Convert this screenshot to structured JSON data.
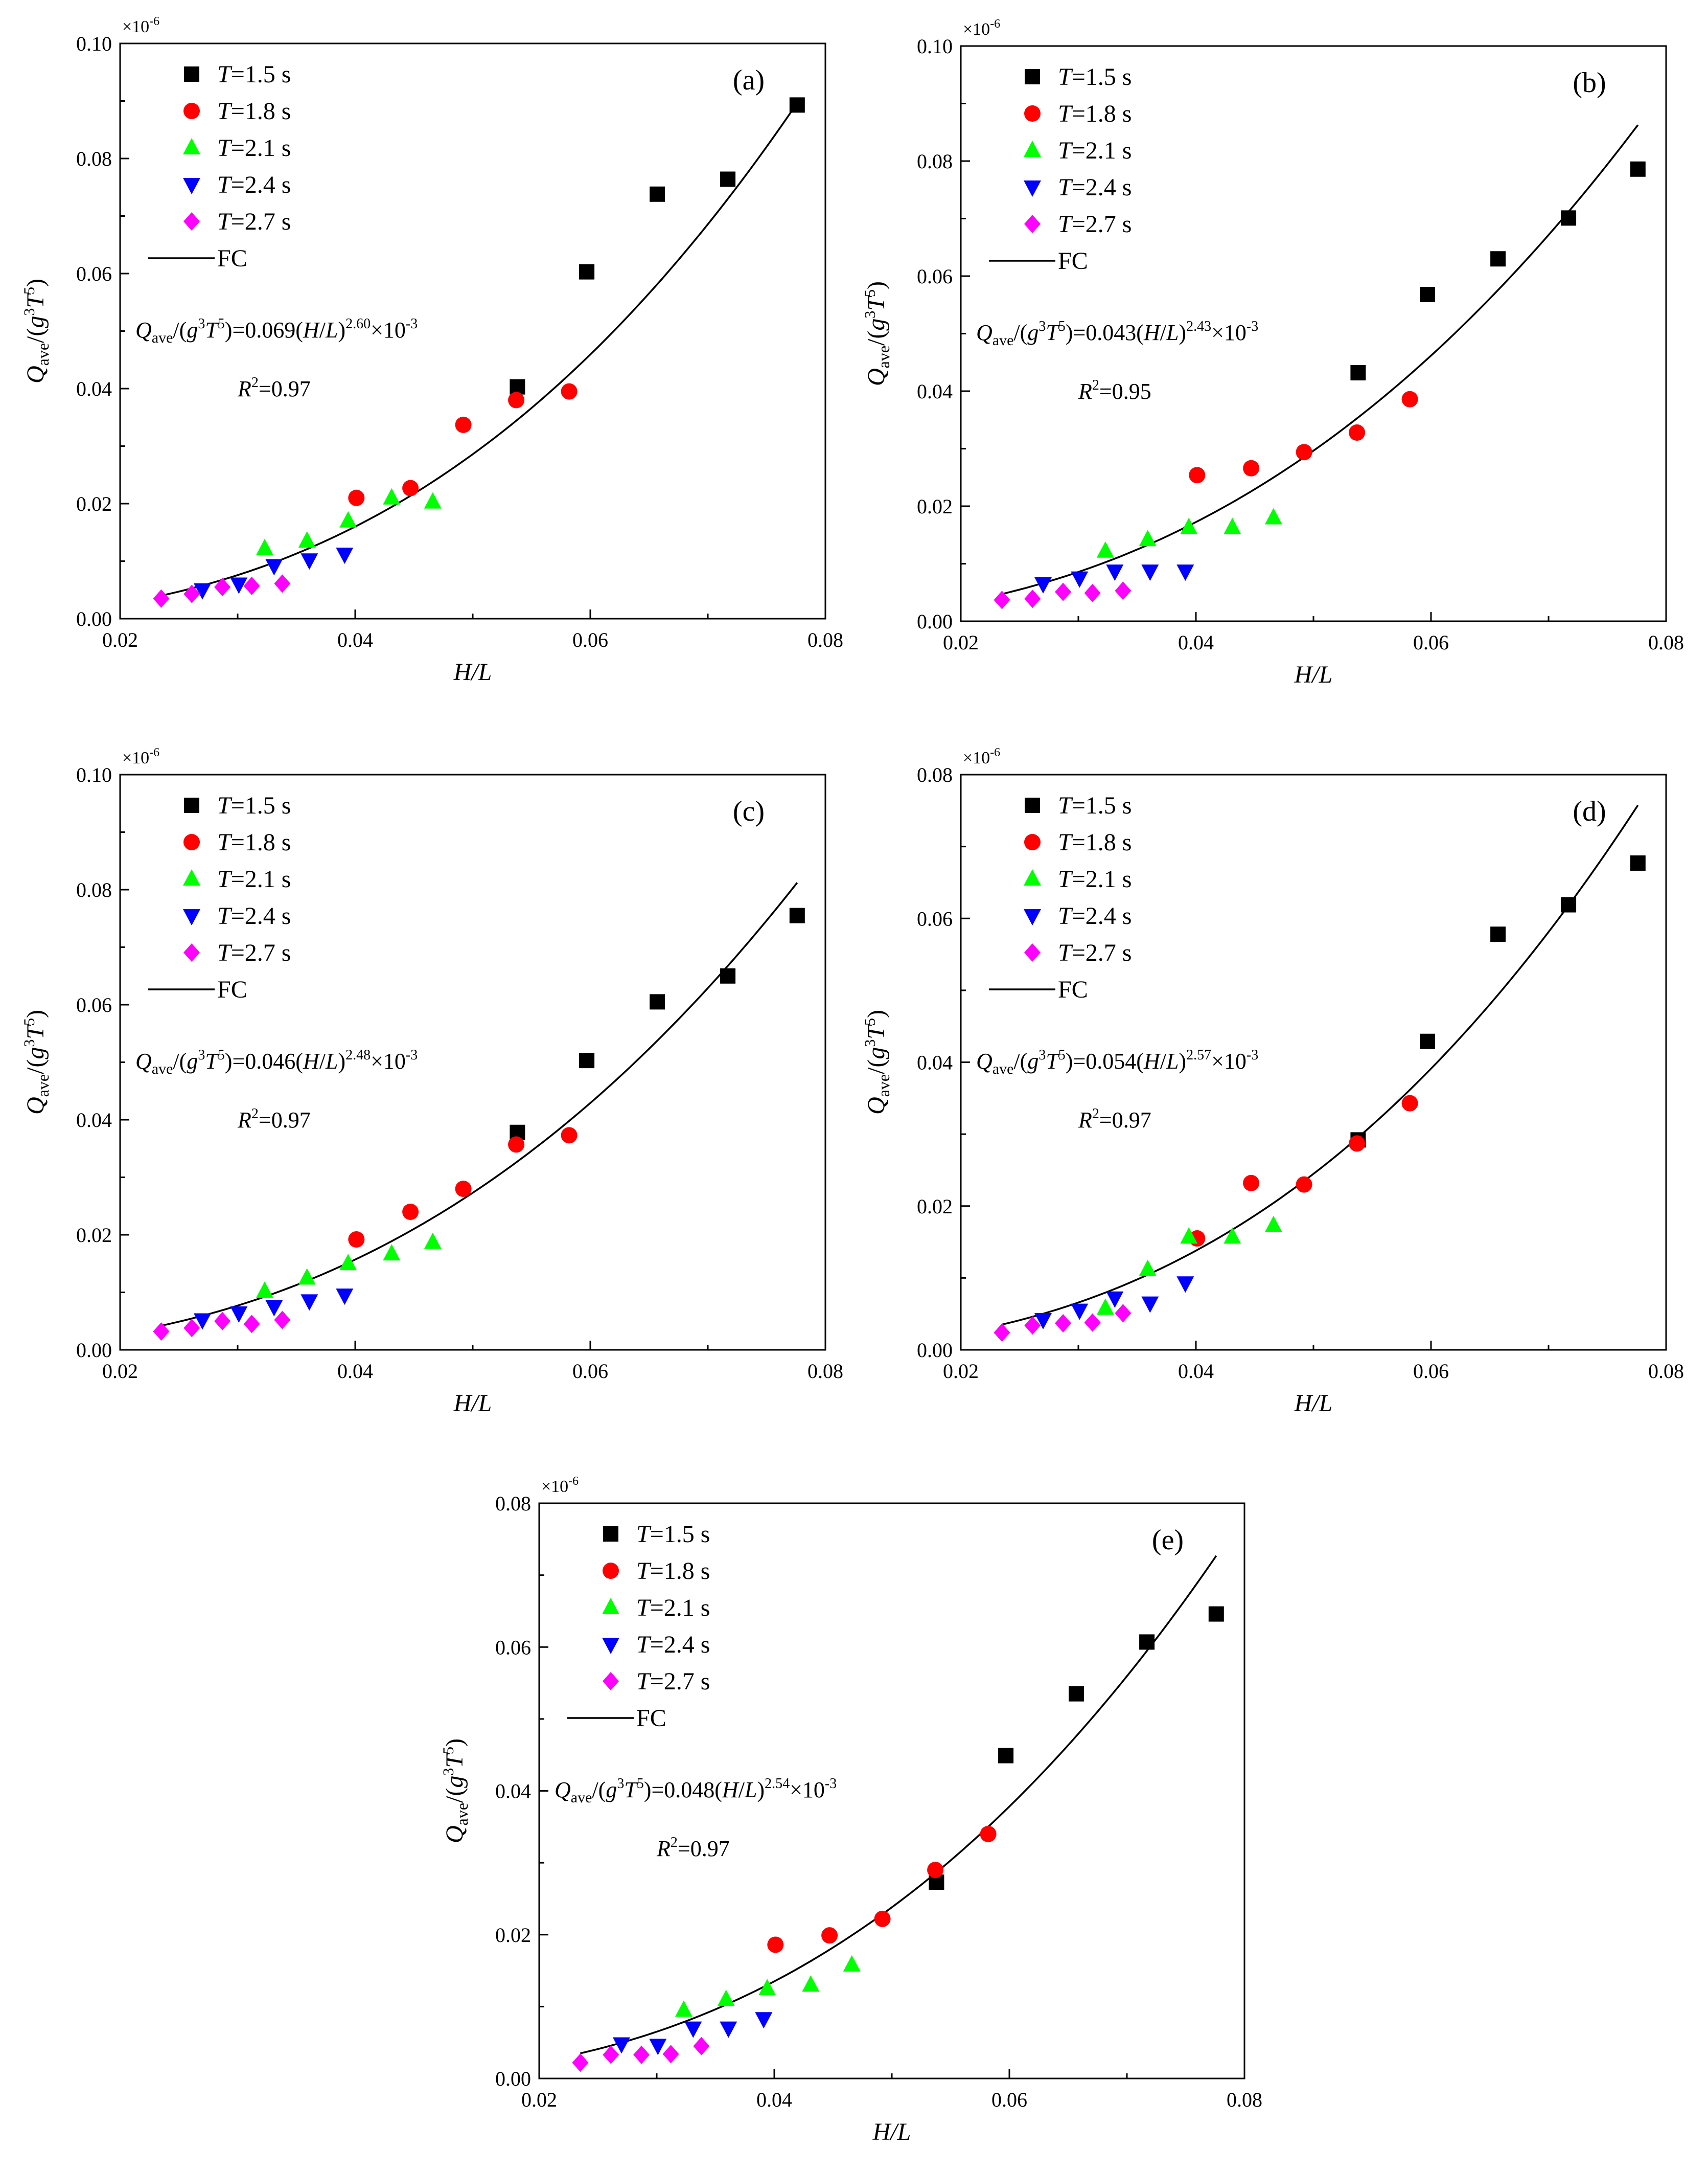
{
  "chart_data": [
    {
      "type": "scatter",
      "panel_label": "(a)",
      "xlabel": "H/L",
      "ylabel": "Qave/(g3T5)",
      "scale_label": "×10",
      "scale_exp": "-6",
      "xlim": [
        0.02,
        0.08
      ],
      "ylim": [
        0.0,
        0.1
      ],
      "xticks": [
        "0.02",
        "0.04",
        "0.06",
        "0.08"
      ],
      "yticks": [
        "0.00",
        "0.02",
        "0.04",
        "0.06",
        "0.08",
        "0.10"
      ],
      "fit": {
        "name": "FC",
        "coef": 0.069,
        "exp": 2.6
      },
      "eq": {
        "coef": "0.069",
        "exp": "2.60"
      },
      "r2": "0.97",
      "series": [
        {
          "name": "T=1.5 s",
          "t": "1.5",
          "marker": "square",
          "color": "#000000",
          "x": [
            0.0538,
            0.0597,
            0.0657,
            0.0717,
            0.0776
          ],
          "y": [
            0.0403,
            0.0603,
            0.0738,
            0.0764,
            0.0893
          ]
        },
        {
          "name": "T=1.8 s",
          "t": "1.8",
          "marker": "circle",
          "color": "#ff0000",
          "x": [
            0.0401,
            0.0447,
            0.0492,
            0.0537,
            0.0582
          ],
          "y": [
            0.021,
            0.0227,
            0.0337,
            0.038,
            0.0395
          ]
        },
        {
          "name": "T=2.1 s",
          "t": "2.1",
          "marker": "triangle-up",
          "color": "#00ff00",
          "x": [
            0.0323,
            0.0359,
            0.0394,
            0.0431,
            0.0466
          ],
          "y": [
            0.0122,
            0.0135,
            0.017,
            0.021,
            0.0203
          ]
        },
        {
          "name": "T=2.4 s",
          "t": "2.4",
          "marker": "triangle-down",
          "color": "#0000ff",
          "x": [
            0.027,
            0.0301,
            0.0331,
            0.0361,
            0.0391
          ],
          "y": [
            0.005,
            0.006,
            0.0092,
            0.0102,
            0.0112
          ]
        },
        {
          "name": "T=2.7 s",
          "t": "2.7",
          "marker": "diamond",
          "color": "#ff00ff",
          "x": [
            0.0235,
            0.0261,
            0.0287,
            0.0312,
            0.0338
          ],
          "y": [
            0.0035,
            0.0043,
            0.0055,
            0.0057,
            0.0061
          ]
        }
      ]
    },
    {
      "type": "scatter",
      "panel_label": "(b)",
      "xlabel": "H/L",
      "ylabel": "Qave/(g3T5)",
      "scale_label": "×10",
      "scale_exp": "-6",
      "xlim": [
        0.02,
        0.08
      ],
      "ylim": [
        0.0,
        0.1
      ],
      "xticks": [
        "0.02",
        "0.04",
        "0.06",
        "0.08"
      ],
      "yticks": [
        "0.00",
        "0.02",
        "0.04",
        "0.06",
        "0.08",
        "0.10"
      ],
      "fit": {
        "name": "FC",
        "coef": 0.043,
        "exp": 2.43
      },
      "eq": {
        "coef": "0.043",
        "exp": "2.43"
      },
      "r2": "0.95",
      "series": [
        {
          "name": "T=1.5 s",
          "t": "1.5",
          "marker": "square",
          "color": "#000000",
          "x": [
            0.0538,
            0.0597,
            0.0657,
            0.0717,
            0.0776
          ],
          "y": [
            0.0432,
            0.0568,
            0.063,
            0.0701,
            0.0786
          ]
        },
        {
          "name": "T=1.8 s",
          "t": "1.8",
          "marker": "circle",
          "color": "#ff0000",
          "x": [
            0.0401,
            0.0447,
            0.0492,
            0.0537,
            0.0582
          ],
          "y": [
            0.0254,
            0.0266,
            0.0294,
            0.0328,
            0.0386
          ]
        },
        {
          "name": "T=2.1 s",
          "t": "2.1",
          "marker": "triangle-up",
          "color": "#00ff00",
          "x": [
            0.0323,
            0.0359,
            0.0394,
            0.0431,
            0.0466
          ],
          "y": [
            0.0122,
            0.0142,
            0.0163,
            0.0163,
            0.018
          ]
        },
        {
          "name": "T=2.4 s",
          "t": "2.4",
          "marker": "triangle-down",
          "color": "#0000ff",
          "x": [
            0.027,
            0.0301,
            0.0331,
            0.0361,
            0.0391
          ],
          "y": [
            0.0065,
            0.0075,
            0.0087,
            0.0087,
            0.0087
          ]
        },
        {
          "name": "T=2.7 s",
          "t": "2.7",
          "marker": "diamond",
          "color": "#ff00ff",
          "x": [
            0.0235,
            0.0261,
            0.0287,
            0.0312,
            0.0338
          ],
          "y": [
            0.0037,
            0.0039,
            0.0051,
            0.0049,
            0.0053
          ]
        }
      ]
    },
    {
      "type": "scatter",
      "panel_label": "(c)",
      "xlabel": "H/L",
      "ylabel": "Qave/(g3T5)",
      "scale_label": "×10",
      "scale_exp": "-6",
      "xlim": [
        0.02,
        0.08
      ],
      "ylim": [
        0.0,
        0.1
      ],
      "xticks": [
        "0.02",
        "0.04",
        "0.06",
        "0.08"
      ],
      "yticks": [
        "0.00",
        "0.02",
        "0.04",
        "0.06",
        "0.08",
        "0.10"
      ],
      "fit": {
        "name": "FC",
        "coef": 0.046,
        "exp": 2.48
      },
      "eq": {
        "coef": "0.046",
        "exp": "2.48"
      },
      "r2": "0.97",
      "series": [
        {
          "name": "T=1.5 s",
          "t": "1.5",
          "marker": "square",
          "color": "#000000",
          "x": [
            0.0538,
            0.0597,
            0.0657,
            0.0717,
            0.0776
          ],
          "y": [
            0.0378,
            0.0503,
            0.0605,
            0.065,
            0.0755
          ]
        },
        {
          "name": "T=1.8 s",
          "t": "1.8",
          "marker": "circle",
          "color": "#ff0000",
          "x": [
            0.0401,
            0.0447,
            0.0492,
            0.0537,
            0.0582
          ],
          "y": [
            0.0192,
            0.024,
            0.028,
            0.0357,
            0.0373
          ]
        },
        {
          "name": "T=2.1 s",
          "t": "2.1",
          "marker": "triangle-up",
          "color": "#00ff00",
          "x": [
            0.0323,
            0.0359,
            0.0394,
            0.0431,
            0.0466
          ],
          "y": [
            0.0102,
            0.0125,
            0.015,
            0.0167,
            0.0187
          ]
        },
        {
          "name": "T=2.4 s",
          "t": "2.4",
          "marker": "triangle-down",
          "color": "#0000ff",
          "x": [
            0.027,
            0.0301,
            0.0331,
            0.0361,
            0.0391
          ],
          "y": [
            0.0052,
            0.0064,
            0.0075,
            0.0085,
            0.0095
          ]
        },
        {
          "name": "T=2.7 s",
          "t": "2.7",
          "marker": "diamond",
          "color": "#ff00ff",
          "x": [
            0.0235,
            0.0261,
            0.0287,
            0.0312,
            0.0338
          ],
          "y": [
            0.0032,
            0.0038,
            0.005,
            0.0045,
            0.0052
          ]
        }
      ]
    },
    {
      "type": "scatter",
      "panel_label": "(d)",
      "xlabel": "H/L",
      "ylabel": "Qave/(g3T5)",
      "scale_label": "×10",
      "scale_exp": "-6",
      "xlim": [
        0.02,
        0.08
      ],
      "ylim": [
        0.0,
        0.08
      ],
      "xticks": [
        "0.02",
        "0.04",
        "0.06",
        "0.08"
      ],
      "yticks": [
        "0.00",
        "0.02",
        "0.04",
        "0.06",
        "0.08"
      ],
      "fit": {
        "name": "FC",
        "coef": 0.054,
        "exp": 2.57
      },
      "eq": {
        "coef": "0.054",
        "exp": "2.57"
      },
      "r2": "0.97",
      "series": [
        {
          "name": "T=1.5 s",
          "t": "1.5",
          "marker": "square",
          "color": "#000000",
          "x": [
            0.0538,
            0.0597,
            0.0657,
            0.0717,
            0.0776
          ],
          "y": [
            0.0292,
            0.0429,
            0.0578,
            0.0619,
            0.0677
          ]
        },
        {
          "name": "T=1.8 s",
          "t": "1.8",
          "marker": "circle",
          "color": "#ff0000",
          "x": [
            0.0401,
            0.0447,
            0.0492,
            0.0537,
            0.0582
          ],
          "y": [
            0.0155,
            0.0232,
            0.023,
            0.0287,
            0.0343
          ]
        },
        {
          "name": "T=2.1 s",
          "t": "2.1",
          "marker": "triangle-up",
          "color": "#00ff00",
          "x": [
            0.0323,
            0.0359,
            0.0394,
            0.0431,
            0.0466
          ],
          "y": [
            0.0058,
            0.0112,
            0.0157,
            0.0157,
            0.0173
          ]
        },
        {
          "name": "T=2.4 s",
          "t": "2.4",
          "marker": "triangle-down",
          "color": "#0000ff",
          "x": [
            0.027,
            0.0301,
            0.0331,
            0.0361,
            0.0391
          ],
          "y": [
            0.0042,
            0.0055,
            0.0072,
            0.0065,
            0.0093
          ]
        },
        {
          "name": "T=2.7 s",
          "t": "2.7",
          "marker": "diamond",
          "color": "#ff00ff",
          "x": [
            0.0235,
            0.0261,
            0.0287,
            0.0312,
            0.0338
          ],
          "y": [
            0.0024,
            0.0034,
            0.0037,
            0.0038,
            0.0051
          ]
        }
      ]
    },
    {
      "type": "scatter",
      "panel_label": "(e)",
      "xlabel": "H/L",
      "ylabel": "Qave/(g3T5)",
      "scale_label": "×10",
      "scale_exp": "-6",
      "xlim": [
        0.02,
        0.08
      ],
      "ylim": [
        0.0,
        0.08
      ],
      "xticks": [
        "0.02",
        "0.04",
        "0.06",
        "0.08"
      ],
      "yticks": [
        "0.00",
        "0.02",
        "0.04",
        "0.06",
        "0.08"
      ],
      "fit": {
        "name": "FC",
        "coef": 0.048,
        "exp": 2.54
      },
      "eq": {
        "coef": "0.048",
        "exp": "2.54"
      },
      "r2": "0.97",
      "series": [
        {
          "name": "T=1.5 s",
          "t": "1.5",
          "marker": "square",
          "color": "#000000",
          "x": [
            0.0538,
            0.0597,
            0.0657,
            0.0717,
            0.0776
          ],
          "y": [
            0.0273,
            0.0449,
            0.0535,
            0.0607,
            0.0646
          ]
        },
        {
          "name": "T=1.8 s",
          "t": "1.8",
          "marker": "circle",
          "color": "#ff0000",
          "x": [
            0.0401,
            0.0447,
            0.0492,
            0.0537,
            0.0582
          ],
          "y": [
            0.0186,
            0.0199,
            0.0222,
            0.029,
            0.034
          ]
        },
        {
          "name": "T=2.1 s",
          "t": "2.1",
          "marker": "triangle-up",
          "color": "#00ff00",
          "x": [
            0.0323,
            0.0359,
            0.0394,
            0.0431,
            0.0466
          ],
          "y": [
            0.0095,
            0.011,
            0.0125,
            0.013,
            0.0158
          ]
        },
        {
          "name": "T=2.4 s",
          "t": "2.4",
          "marker": "triangle-down",
          "color": "#0000ff",
          "x": [
            0.027,
            0.0301,
            0.0331,
            0.0361,
            0.0391
          ],
          "y": [
            0.0048,
            0.0046,
            0.007,
            0.007,
            0.0083
          ]
        },
        {
          "name": "T=2.7 s",
          "t": "2.7",
          "marker": "diamond",
          "color": "#ff00ff",
          "x": [
            0.0235,
            0.0261,
            0.0287,
            0.0312,
            0.0338
          ],
          "y": [
            0.0022,
            0.0033,
            0.0033,
            0.0034,
            0.0045
          ]
        }
      ]
    }
  ]
}
